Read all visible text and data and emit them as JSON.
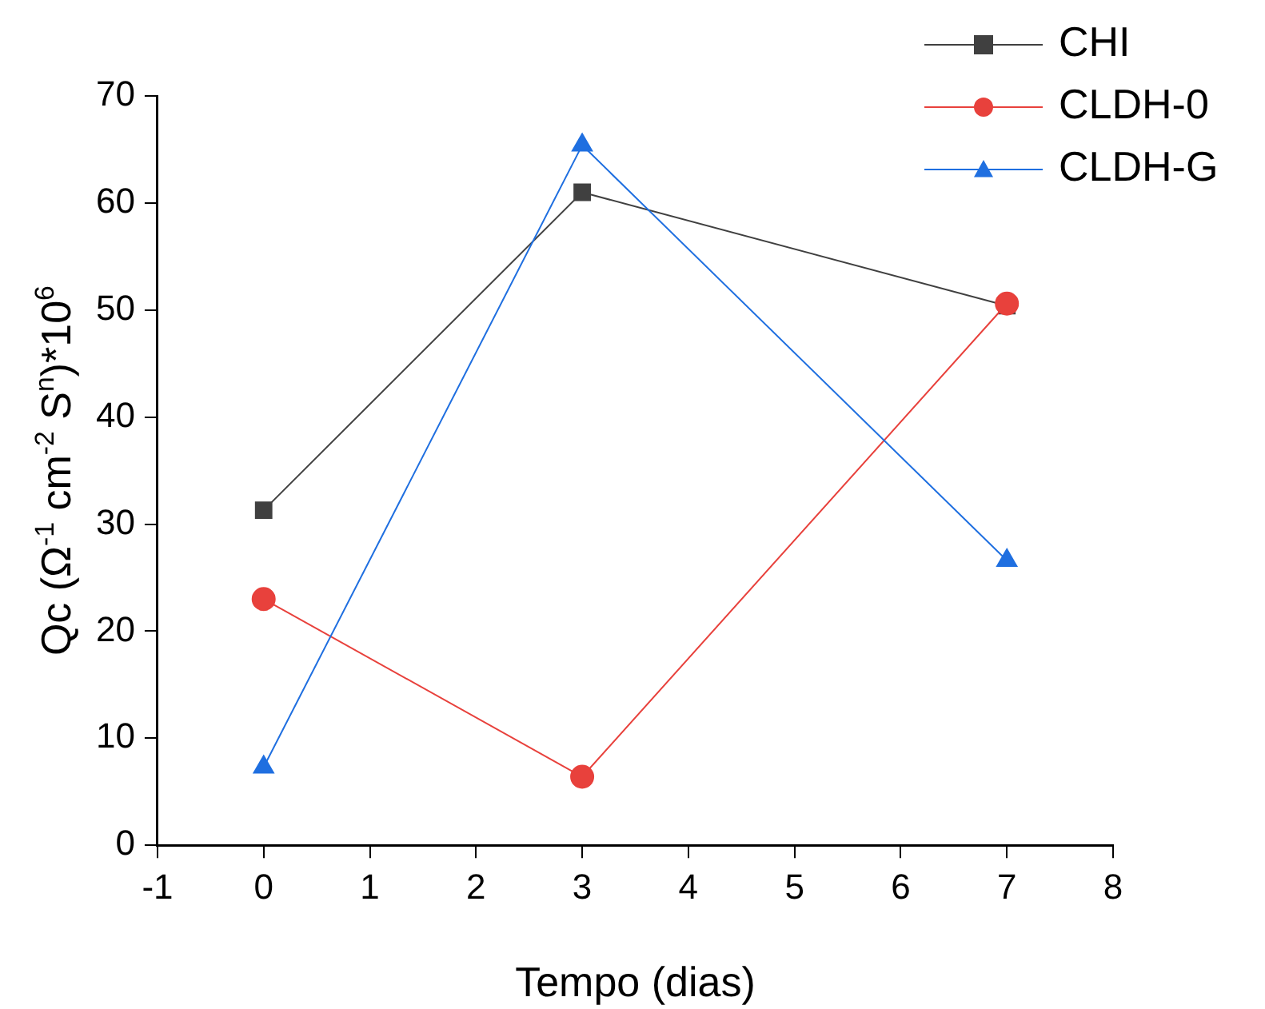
{
  "chart_data": {
    "type": "line",
    "xlabel": "Tempo (dias)",
    "ylabel": "Qc (Ω$^{-1}$ cm$^{-2}$ S$^{n}$)*10$^{6}$",
    "x": [
      0,
      3,
      7
    ],
    "series": [
      {
        "name": "CHI",
        "color": "#404040",
        "values": [
          31.3,
          61.0,
          50.4
        ],
        "marker": "square"
      },
      {
        "name": "CLDH-0",
        "color": "#e8413c",
        "values": [
          23.0,
          6.4,
          50.6
        ],
        "marker": "circle"
      },
      {
        "name": "CLDH-G",
        "color": "#1f6fe0",
        "values": [
          7.3,
          65.4,
          26.6
        ],
        "marker": "triangle"
      }
    ],
    "xlim": [
      -1,
      8
    ],
    "xticks": [
      -1,
      0,
      1,
      2,
      3,
      4,
      5,
      6,
      7,
      8
    ],
    "ylim": [
      0,
      70
    ],
    "yticks": [
      0,
      10,
      20,
      30,
      40,
      50,
      60,
      70
    ],
    "grid": false,
    "legend": "top right",
    "line_style": "solid"
  }
}
